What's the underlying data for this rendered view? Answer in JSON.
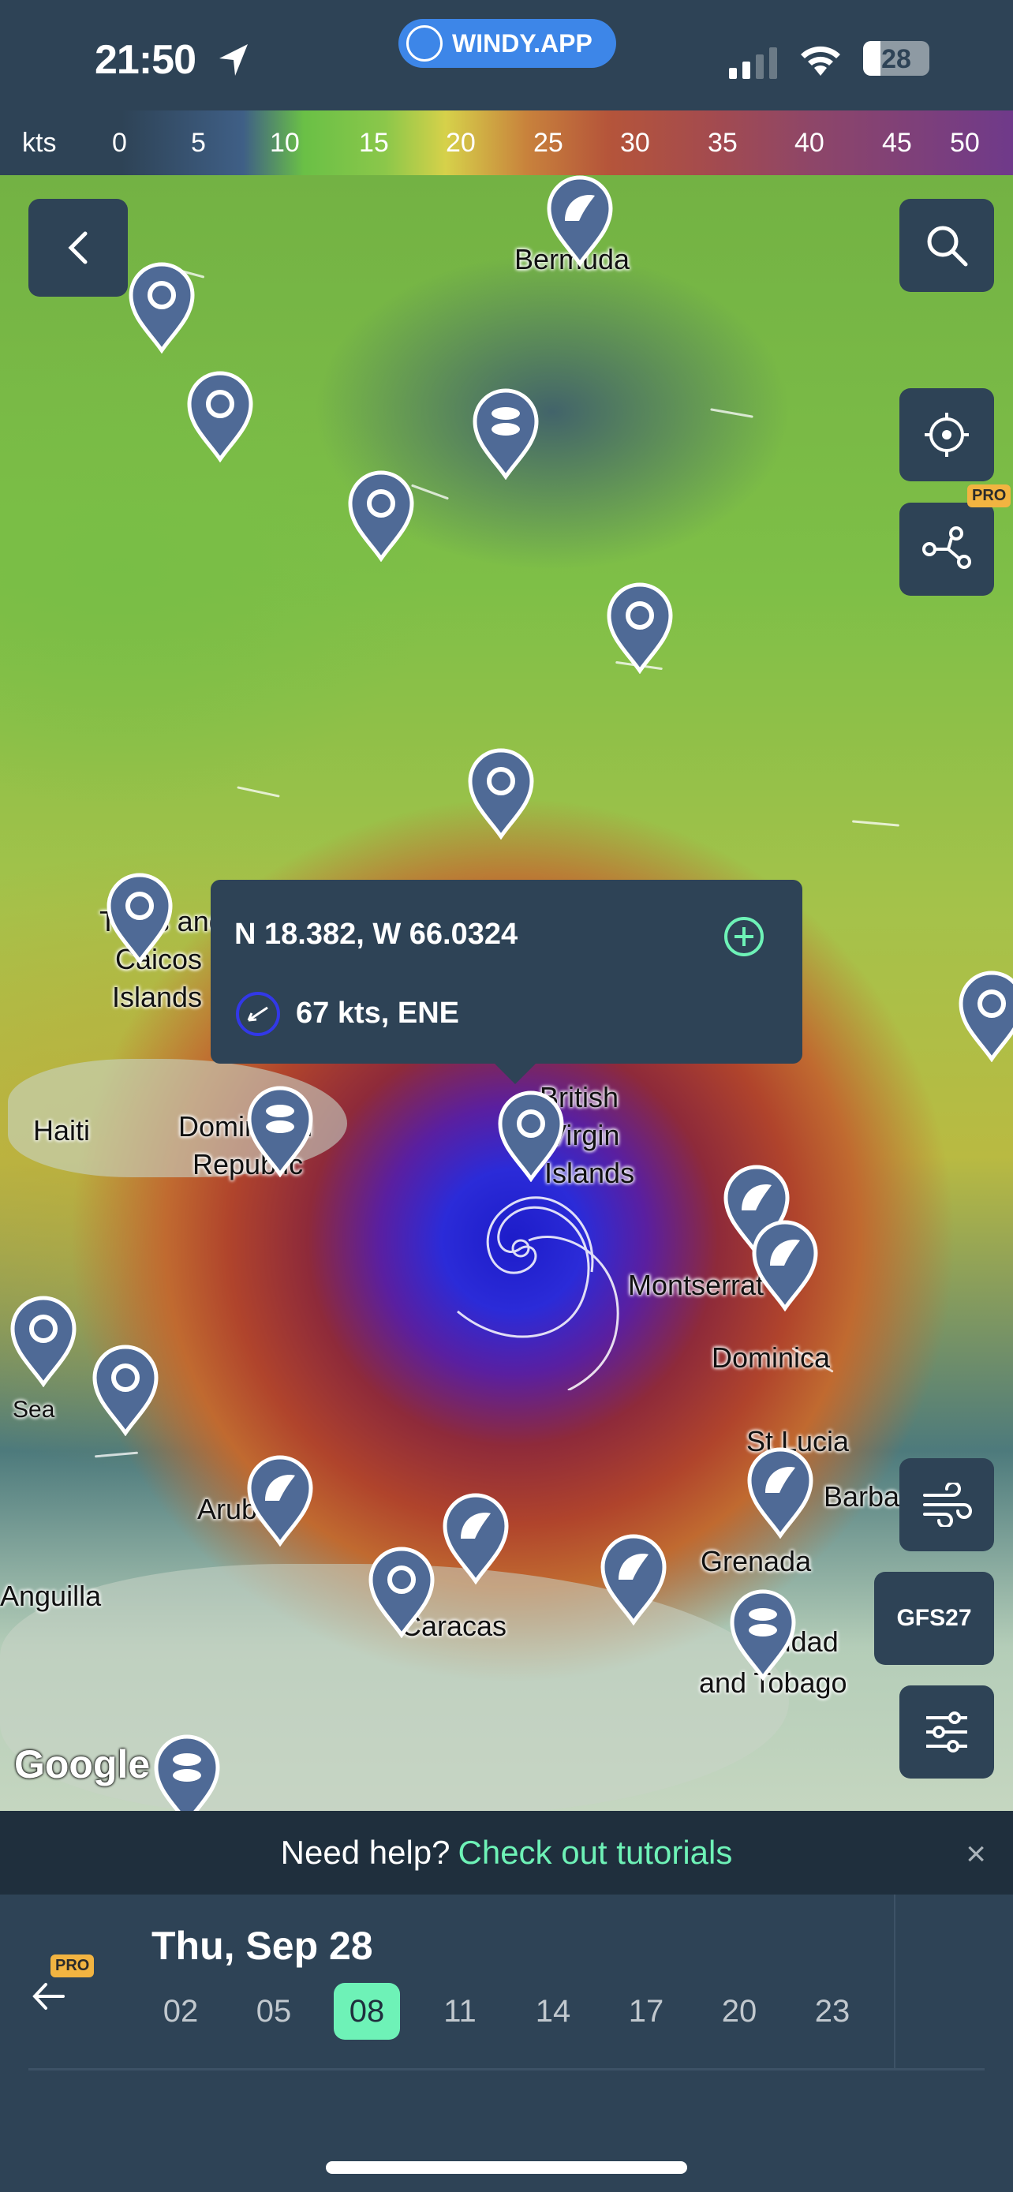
{
  "status_bar": {
    "time": "21:50",
    "app_badge": "WINDY.APP",
    "battery": "28"
  },
  "scale": {
    "unit": "kts",
    "ticks": [
      "0",
      "5",
      "10",
      "15",
      "20",
      "25",
      "30",
      "35",
      "40",
      "45",
      "50"
    ]
  },
  "map": {
    "labels": [
      "Bermuda",
      "Turks and",
      "Caicos",
      "Islands",
      "Haiti",
      "Dominican",
      "Republic",
      "British",
      "Virgin",
      "Islands",
      "Montserrat",
      "Dominica",
      "St Lucia",
      "Barbados",
      "Aruba",
      "Anguilla",
      "Caracas",
      "Grenada",
      "Trinidad",
      "and Tobago",
      "Sea"
    ],
    "attribution": "Google"
  },
  "tooltip": {
    "coordinates": "N 18.382, W 66.0324",
    "wind": "67 kts, ENE"
  },
  "controls": {
    "model_label": "GFS27",
    "pro_badge": "PRO"
  },
  "help_bar": {
    "text": "Need help?",
    "link": "Check out tutorials",
    "close": "×"
  },
  "timeline": {
    "date": "Thu, Sep 28",
    "pro_badge": "PRO",
    "hours": [
      "02",
      "05",
      "08",
      "11",
      "14",
      "17",
      "20",
      "23"
    ],
    "selected_hour": "08"
  },
  "colors": {
    "accent": "#6ef2b7",
    "pro": "#f2b441",
    "panel": "#2e4356",
    "badge": "#3d86e8"
  }
}
